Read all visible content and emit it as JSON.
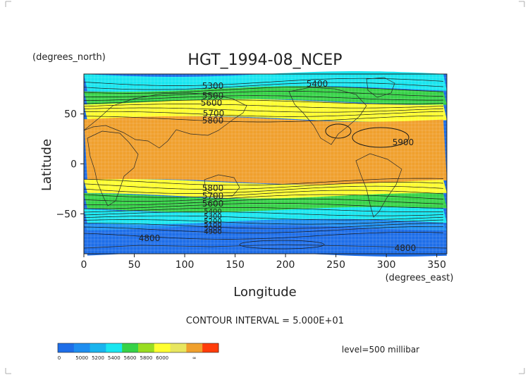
{
  "title": "HGT_1994-08_NCEP",
  "y_units": "(degrees_north)",
  "x_units": "(degrees_east)",
  "xlabel": "Longitude",
  "ylabel": "Latitude",
  "contour_interval": "CONTOUR INTERVAL = 5.000E+01",
  "level": "level=500 millibar",
  "x_ticks": [
    "0",
    "50",
    "100",
    "150",
    "200",
    "250",
    "300",
    "350"
  ],
  "y_ticks": [
    "50",
    "0",
    "−50"
  ],
  "contour_labels": [
    "5300",
    "5400",
    "5500",
    "5600",
    "5700",
    "5800",
    "5900",
    "5800",
    "5700",
    "5600",
    "5400",
    "5300",
    "5200",
    "5100",
    "5000",
    "4900",
    "4800",
    "4800"
  ],
  "colorbar": {
    "labels": [
      "0",
      "5000",
      "5200",
      "5400",
      "5600",
      "5800",
      "6000",
      "∞"
    ],
    "colors": [
      "#1e6ee8",
      "#1e8ef0",
      "#19b4ee",
      "#19e6f0",
      "#36d247",
      "#99dd21",
      "#ffff30",
      "#e8e65f",
      "#f0a02d",
      "#ff3c0a"
    ]
  },
  "chart_data": {
    "type": "heatmap",
    "title": "HGT_1994-08_NCEP",
    "xlabel": "Longitude",
    "ylabel": "Latitude",
    "xlim": [
      0,
      360
    ],
    "ylim": [
      -90,
      90
    ],
    "bands_by_latitude": [
      {
        "lat_range": [
          75,
          90
        ],
        "range": "5200-5400",
        "color": "#19e6f0"
      },
      {
        "lat_range": [
          62,
          75
        ],
        "range": "5400-5600",
        "color": "#36d247"
      },
      {
        "lat_range": [
          45,
          62
        ],
        "range": "5600-5800",
        "color": "#ffff30"
      },
      {
        "lat_range": [
          -18,
          45
        ],
        "range": "5800-6000",
        "color": "#f0a02d"
      },
      {
        "lat_range": [
          -32,
          -18
        ],
        "range": "5600-5800",
        "color": "#ffff30"
      },
      {
        "lat_range": [
          -46,
          -32
        ],
        "range": "5400-5600",
        "color": "#36d247"
      },
      {
        "lat_range": [
          -58,
          -46
        ],
        "range": "5200-5400",
        "color": "#19e6f0"
      },
      {
        "lat_range": [
          -64,
          -58
        ],
        "range": "5000-5200",
        "color": "#1e8ef0"
      },
      {
        "lat_range": [
          -90,
          -64
        ],
        "range": "0-5000",
        "color": "#1e6ee8"
      }
    ]
  }
}
